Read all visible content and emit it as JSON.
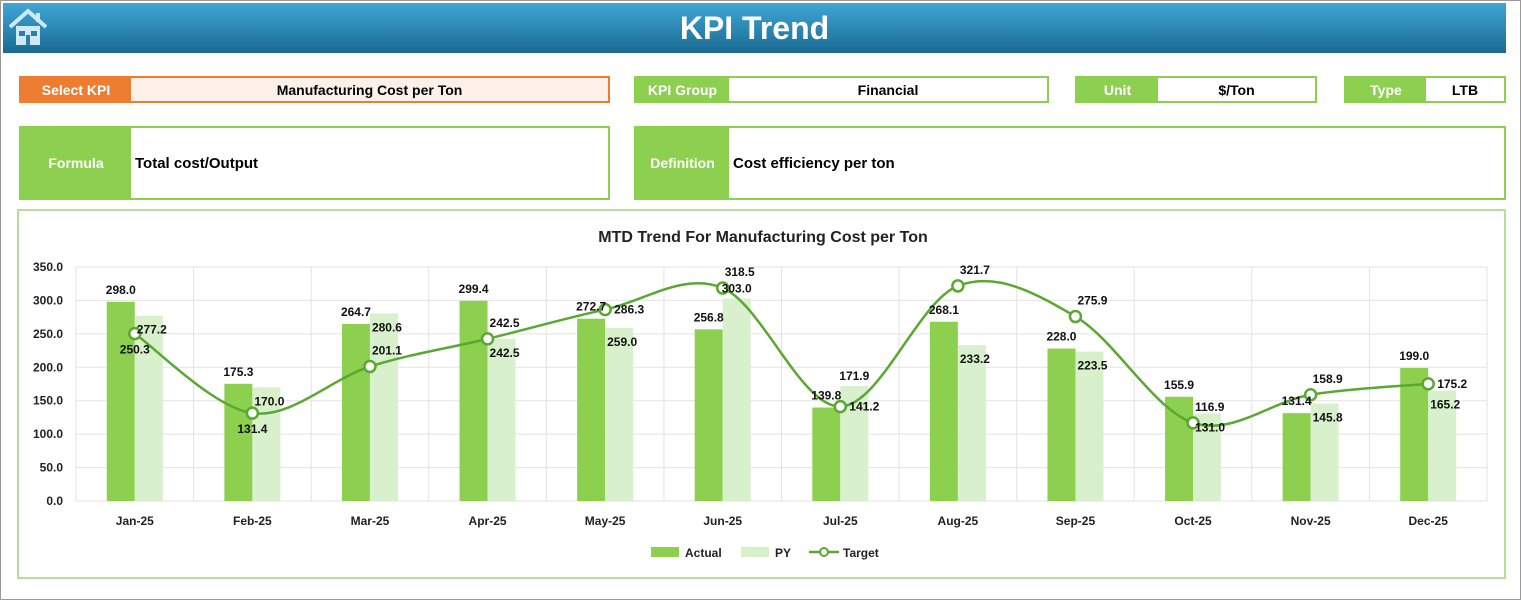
{
  "header": {
    "title": "KPI Trend",
    "home_icon": "home-icon"
  },
  "select_kpi": {
    "label": "Select KPI",
    "value": "Manufacturing Cost per Ton"
  },
  "kpi_group": {
    "label": "KPI Group",
    "value": "Financial"
  },
  "unit": {
    "label": "Unit",
    "value": "$/Ton"
  },
  "type": {
    "label": "Type",
    "value": "LTB"
  },
  "formula": {
    "label": "Formula",
    "value": "Total cost/Output"
  },
  "definition": {
    "label": "Definition",
    "value": "Cost efficiency per ton"
  },
  "colors": {
    "accent_orange": "#ed7d31",
    "green": "#8dcf4f",
    "light_green": "#d9f0cc",
    "target_line": "#5aa832"
  },
  "chart_data": {
    "type": "bar",
    "title": "MTD Trend For Manufacturing Cost per Ton",
    "categories": [
      "Jan-25",
      "Feb-25",
      "Mar-25",
      "Apr-25",
      "May-25",
      "Jun-25",
      "Jul-25",
      "Aug-25",
      "Sep-25",
      "Oct-25",
      "Nov-25",
      "Dec-25"
    ],
    "ylim": [
      0,
      350
    ],
    "yticks": [
      "0.0",
      "50.0",
      "100.0",
      "150.0",
      "200.0",
      "250.0",
      "300.0",
      "350.0"
    ],
    "grid": true,
    "legend": "bottom",
    "series": [
      {
        "name": "Actual",
        "type": "bar",
        "color": "#8dcf4f",
        "values": [
          298.0,
          175.3,
          264.7,
          299.4,
          272.7,
          256.8,
          139.8,
          268.1,
          228.0,
          155.9,
          131.4,
          199.0
        ]
      },
      {
        "name": "PY",
        "type": "bar",
        "color": "#d9f0cc",
        "values": [
          277.2,
          170.0,
          280.6,
          242.5,
          259.0,
          303.0,
          171.9,
          233.2,
          223.5,
          131.0,
          145.8,
          165.2
        ]
      },
      {
        "name": "Target",
        "type": "line",
        "color": "#5aa832",
        "values": [
          250.3,
          131.4,
          201.1,
          242.5,
          286.3,
          318.5,
          141.2,
          321.7,
          275.9,
          116.9,
          158.9,
          175.2
        ]
      }
    ]
  }
}
